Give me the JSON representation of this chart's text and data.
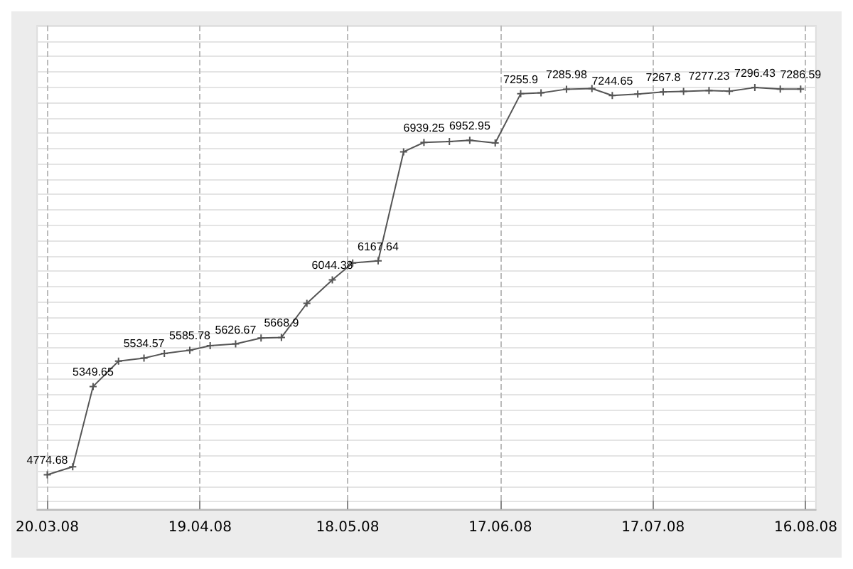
{
  "chart_data": {
    "type": "line",
    "x": [
      "2008-03-20",
      "2008-03-25",
      "2008-03-29",
      "2008-04-03",
      "2008-04-08",
      "2008-04-12",
      "2008-04-17",
      "2008-04-21",
      "2008-04-26",
      "2008-05-01",
      "2008-05-05",
      "2008-05-10",
      "2008-05-15",
      "2008-05-19",
      "2008-05-24",
      "2008-05-29",
      "2008-06-02",
      "2008-06-07",
      "2008-06-11",
      "2008-06-16",
      "2008-06-21",
      "2008-06-25",
      "2008-06-30",
      "2008-07-05",
      "2008-07-09",
      "2008-07-14",
      "2008-07-19",
      "2008-07-23",
      "2008-07-28",
      "2008-08-01",
      "2008-08-06",
      "2008-08-11",
      "2008-08-15"
    ],
    "series": [
      {
        "color": "#555555",
        "values": [
          4774.68,
          4827,
          5349.65,
          5515,
          5534.57,
          5565,
          5585.78,
          5615,
          5626.67,
          5665,
          5668.9,
          5891,
          6044.38,
          6154,
          6167.64,
          6878,
          6939.25,
          6945,
          6952.95,
          6936,
          7255.9,
          7262,
          7285.98,
          7290,
          7244.65,
          7254,
          7267.8,
          7272,
          7277.23,
          7273,
          7296.43,
          7287,
          7286.59
        ],
        "value_labels": [
          "4774.68",
          null,
          "5349.65",
          null,
          "5534.57",
          null,
          "5585.78",
          null,
          "5626.67",
          null,
          "5668.9",
          null,
          "6044.38",
          null,
          "6167.64",
          null,
          "6939.25",
          null,
          "6952.95",
          null,
          "7255.9",
          null,
          "7285.98",
          null,
          "7244.65",
          null,
          "7267.8",
          null,
          "7277.23",
          null,
          "7296.43",
          null,
          "7286.59"
        ]
      }
    ],
    "xlim": [
      "2008-03-18",
      "2008-08-18"
    ],
    "xticks": [
      {
        "value": "2008-03-20",
        "label": "20.03.08"
      },
      {
        "value": "2008-04-19",
        "label": "19.04.08"
      },
      {
        "value": "2008-05-18",
        "label": "18.05.08"
      },
      {
        "value": "2008-06-17",
        "label": "17.06.08"
      },
      {
        "value": "2008-07-17",
        "label": "17.07.08"
      },
      {
        "value": "2008-08-16",
        "label": "16.08.08"
      }
    ],
    "ylim": [
      4550,
      7700
    ],
    "yticks": [
      {
        "value": 4600,
        "label": null
      },
      {
        "value": 4700,
        "label": null
      },
      {
        "value": 4800,
        "label": null
      },
      {
        "value": 4900,
        "label": null
      },
      {
        "value": 5000,
        "label": null
      },
      {
        "value": 5100,
        "label": null
      },
      {
        "value": 5200,
        "label": null
      },
      {
        "value": 5300,
        "label": null
      },
      {
        "value": 5400,
        "label": null
      },
      {
        "value": 5500,
        "label": null
      },
      {
        "value": 5600,
        "label": null
      },
      {
        "value": 5700,
        "label": null
      },
      {
        "value": 5800,
        "label": null
      },
      {
        "value": 5900,
        "label": null
      },
      {
        "value": 6000,
        "label": null
      },
      {
        "value": 6100,
        "label": null
      },
      {
        "value": 6200,
        "label": null
      },
      {
        "value": 6300,
        "label": null
      },
      {
        "value": 6400,
        "label": null
      },
      {
        "value": 6500,
        "label": null
      },
      {
        "value": 6600,
        "label": null
      },
      {
        "value": 6700,
        "label": null
      },
      {
        "value": 6800,
        "label": null
      },
      {
        "value": 6900,
        "label": null
      },
      {
        "value": 7000,
        "label": null
      },
      {
        "value": 7100,
        "label": null
      },
      {
        "value": 7200,
        "label": null
      },
      {
        "value": 7300,
        "label": null
      },
      {
        "value": 7400,
        "label": null
      },
      {
        "value": 7500,
        "label": null
      },
      {
        "value": 7600,
        "label": null
      },
      {
        "value": 7700,
        "label": null
      }
    ],
    "tick_labels": "x",
    "grid": true,
    "marker": "cross",
    "line_style": "solid"
  }
}
